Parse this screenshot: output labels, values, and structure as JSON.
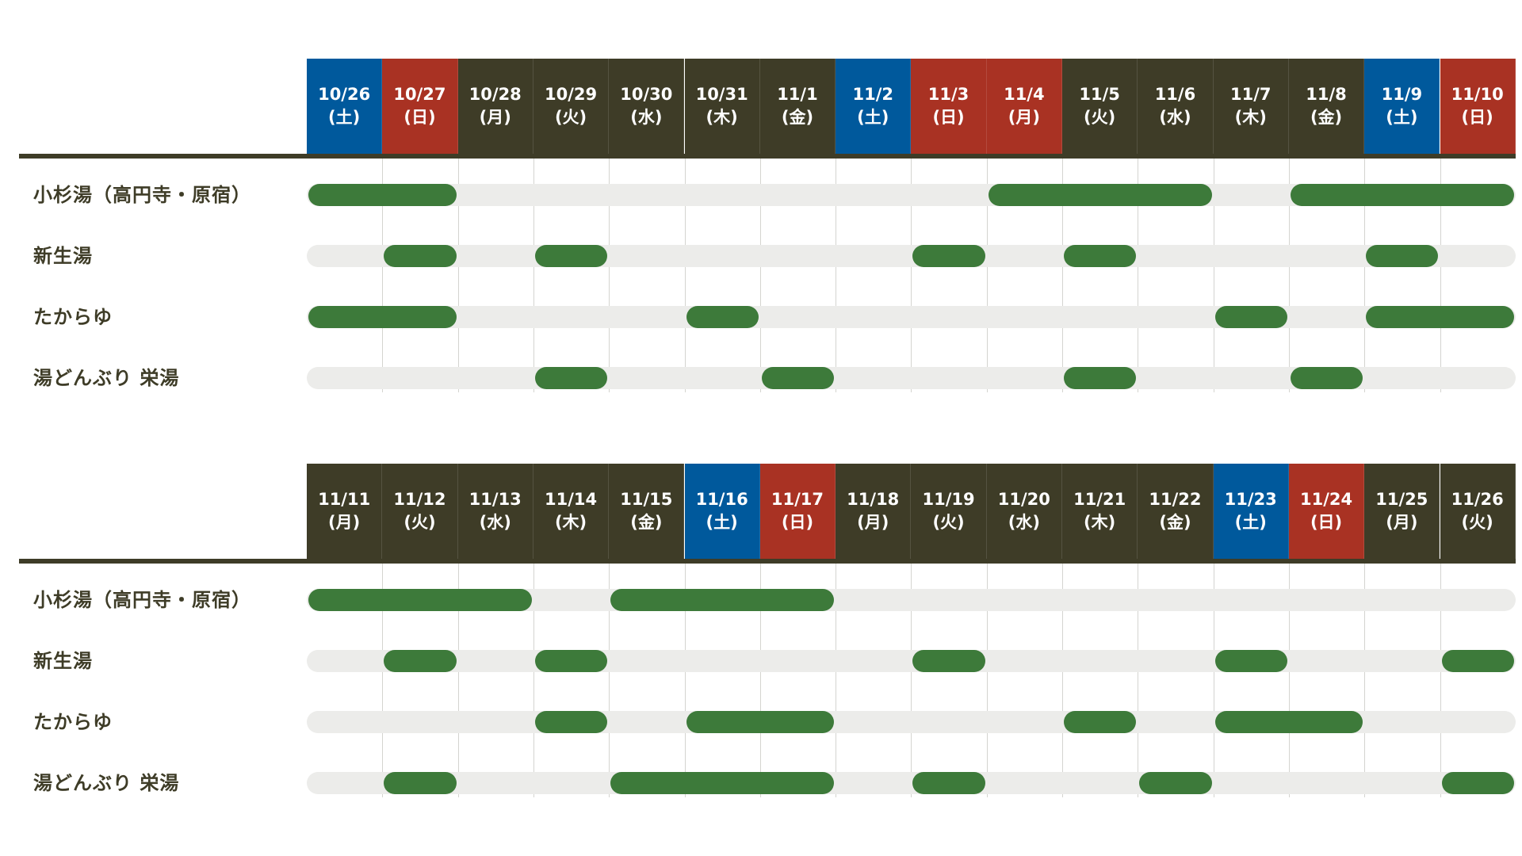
{
  "colors": {
    "weekday": "#3e3c27",
    "saturday": "#00599c",
    "sunday": "#a93223",
    "bar": "#3d7a3a",
    "track": "#ececea",
    "label": "#3e3c27"
  },
  "blocks": [
    {
      "days": [
        {
          "date": "10/26",
          "dow": "(土)",
          "type": "saturday"
        },
        {
          "date": "10/27",
          "dow": "(日)",
          "type": "sunday"
        },
        {
          "date": "10/28",
          "dow": "(月)",
          "type": "weekday"
        },
        {
          "date": "10/29",
          "dow": "(火)",
          "type": "weekday"
        },
        {
          "date": "10/30",
          "dow": "(水)",
          "type": "weekday"
        },
        {
          "date": "10/31",
          "dow": "(木)",
          "type": "weekday"
        },
        {
          "date": "11/1",
          "dow": "(金)",
          "type": "weekday"
        },
        {
          "date": "11/2",
          "dow": "(土)",
          "type": "saturday"
        },
        {
          "date": "11/3",
          "dow": "(日)",
          "type": "sunday"
        },
        {
          "date": "11/4",
          "dow": "(月)",
          "type": "sunday"
        },
        {
          "date": "11/5",
          "dow": "(火)",
          "type": "weekday"
        },
        {
          "date": "11/6",
          "dow": "(水)",
          "type": "weekday"
        },
        {
          "date": "11/7",
          "dow": "(木)",
          "type": "weekday"
        },
        {
          "date": "11/8",
          "dow": "(金)",
          "type": "weekday"
        },
        {
          "date": "11/9",
          "dow": "(土)",
          "type": "saturday"
        },
        {
          "date": "11/10",
          "dow": "(日)",
          "type": "sunday"
        }
      ],
      "rows": [
        {
          "name": "小杉湯（高円寺・原宿）",
          "spans": [
            [
              1,
              2
            ],
            [
              10,
              12
            ],
            [
              14,
              16
            ]
          ]
        },
        {
          "name": "新生湯",
          "spans": [
            [
              2,
              2
            ],
            [
              4,
              4
            ],
            [
              9,
              9
            ],
            [
              11,
              11
            ],
            [
              15,
              15
            ]
          ]
        },
        {
          "name": "たからゆ",
          "spans": [
            [
              1,
              2
            ],
            [
              6,
              6
            ],
            [
              13,
              13
            ],
            [
              15,
              16
            ]
          ]
        },
        {
          "name": "湯どんぶり 栄湯",
          "spans": [
            [
              4,
              4
            ],
            [
              7,
              7
            ],
            [
              11,
              11
            ],
            [
              14,
              14
            ]
          ]
        }
      ]
    },
    {
      "days": [
        {
          "date": "11/11",
          "dow": "(月)",
          "type": "weekday"
        },
        {
          "date": "11/12",
          "dow": "(火)",
          "type": "weekday"
        },
        {
          "date": "11/13",
          "dow": "(水)",
          "type": "weekday"
        },
        {
          "date": "11/14",
          "dow": "(木)",
          "type": "weekday"
        },
        {
          "date": "11/15",
          "dow": "(金)",
          "type": "weekday"
        },
        {
          "date": "11/16",
          "dow": "(土)",
          "type": "saturday"
        },
        {
          "date": "11/17",
          "dow": "(日)",
          "type": "sunday"
        },
        {
          "date": "11/18",
          "dow": "(月)",
          "type": "weekday"
        },
        {
          "date": "11/19",
          "dow": "(火)",
          "type": "weekday"
        },
        {
          "date": "11/20",
          "dow": "(水)",
          "type": "weekday"
        },
        {
          "date": "11/21",
          "dow": "(木)",
          "type": "weekday"
        },
        {
          "date": "11/22",
          "dow": "(金)",
          "type": "weekday"
        },
        {
          "date": "11/23",
          "dow": "(土)",
          "type": "saturday"
        },
        {
          "date": "11/24",
          "dow": "(日)",
          "type": "sunday"
        },
        {
          "date": "11/25",
          "dow": "(月)",
          "type": "weekday"
        },
        {
          "date": "11/26",
          "dow": "(火)",
          "type": "weekday"
        }
      ],
      "rows": [
        {
          "name": "小杉湯（高円寺・原宿）",
          "spans": [
            [
              1,
              3
            ],
            [
              5,
              7
            ]
          ]
        },
        {
          "name": "新生湯",
          "spans": [
            [
              2,
              2
            ],
            [
              4,
              4
            ],
            [
              9,
              9
            ],
            [
              13,
              13
            ],
            [
              16,
              16
            ]
          ]
        },
        {
          "name": "たからゆ",
          "spans": [
            [
              4,
              4
            ],
            [
              6,
              7
            ],
            [
              11,
              11
            ],
            [
              13,
              14
            ]
          ]
        },
        {
          "name": "湯どんぶり 栄湯",
          "spans": [
            [
              2,
              2
            ],
            [
              5,
              7
            ],
            [
              9,
              9
            ],
            [
              12,
              12
            ],
            [
              16,
              16
            ]
          ]
        }
      ]
    }
  ]
}
